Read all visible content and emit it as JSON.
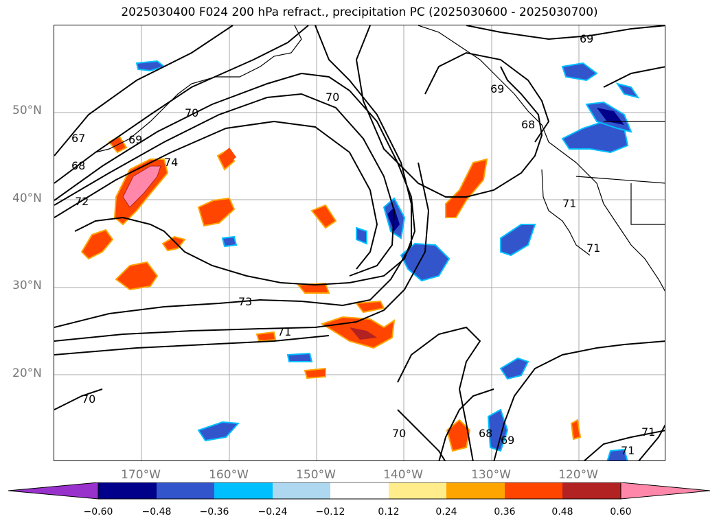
{
  "title": "2025030400 F024 200 hPa refract., precipitation PC (2025030600 - 2025030700)",
  "map": {
    "lat_labels": [
      "50°N",
      "40°N",
      "30°N",
      "20°N"
    ],
    "lon_labels": [
      "170°W",
      "160°W",
      "150°W",
      "140°W",
      "130°W",
      "120°W"
    ],
    "contour_labels": [
      "69",
      "70",
      "70",
      "67",
      "68",
      "69",
      "70",
      "72",
      "73",
      "71",
      "70",
      "68",
      "69",
      "71",
      "71",
      "68",
      "69",
      "71",
      "71",
      "74"
    ],
    "colors": {
      "pink": "#ff88aa",
      "firebrick": "#b22222",
      "orangered": "#ff4500",
      "orange": "#ffa500",
      "light_yellow": "#ffec8b",
      "light_blue": "#add8f0",
      "deep_sky_blue": "#00bfff",
      "royal_blue": "#3355cc",
      "navy": "#00008b",
      "purple": "#9932cc"
    }
  },
  "colorbar": {
    "tick_labels": [
      "−0.60",
      "−0.48",
      "−0.36",
      "−0.24",
      "−0.12",
      "0.12",
      "0.24",
      "0.36",
      "0.48",
      "0.60"
    ]
  }
}
